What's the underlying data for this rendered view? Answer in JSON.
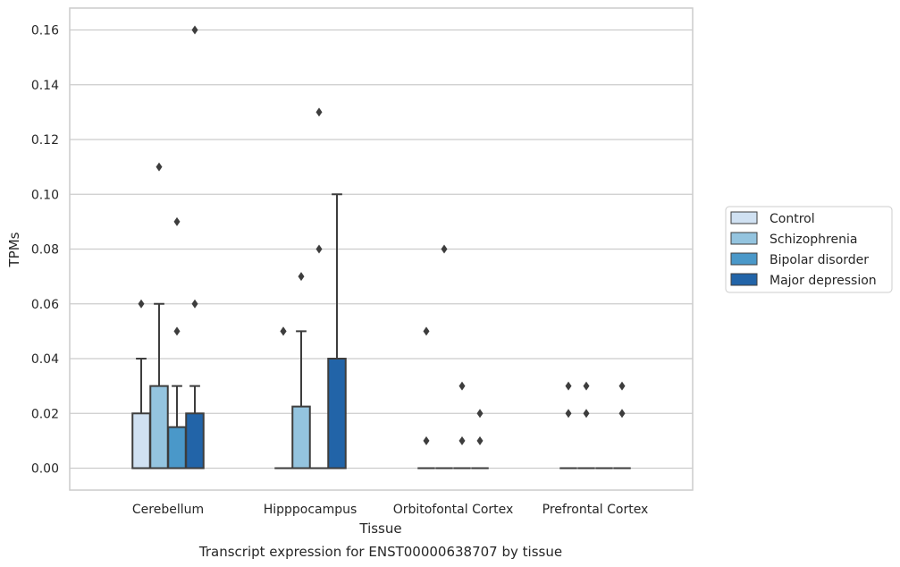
{
  "chart_data": {
    "type": "box",
    "title": "Transcript expression for ENST00000638707 by tissue",
    "xlabel": "Tissue",
    "ylabel": "TPMs",
    "ylim": [
      -0.008,
      0.168
    ],
    "yticks": [
      "0.00",
      "0.02",
      "0.04",
      "0.06",
      "0.08",
      "0.10",
      "0.12",
      "0.14",
      "0.16"
    ],
    "ytick_values": [
      0,
      0.02,
      0.04,
      0.06,
      0.08,
      0.1,
      0.12,
      0.14,
      0.16
    ],
    "grid": "horizontal",
    "legend_position": "right",
    "categories": [
      "Cerebellum",
      "Hipppocampus",
      "Orbitofontal Cortex",
      "Prefrontal Cortex"
    ],
    "series": [
      {
        "name": "Control",
        "color": "#d0e1f2",
        "boxes": [
          {
            "q1": 0,
            "median": 0,
            "q3": 0.02,
            "whisker_low": 0,
            "whisker_high": 0.04,
            "outliers": [
              0.06
            ]
          },
          {
            "q1": 0,
            "median": 0,
            "q3": 0,
            "whisker_low": 0,
            "whisker_high": 0,
            "outliers": [
              0.05,
              0.05
            ]
          },
          {
            "q1": 0,
            "median": 0,
            "q3": 0,
            "whisker_low": 0,
            "whisker_high": 0,
            "outliers": [
              0.01,
              0.05
            ]
          },
          {
            "q1": 0,
            "median": 0,
            "q3": 0,
            "whisker_low": 0,
            "whisker_high": 0,
            "outliers": [
              0.02,
              0.03
            ]
          }
        ]
      },
      {
        "name": "Schizophrenia",
        "color": "#94c4df",
        "boxes": [
          {
            "q1": 0,
            "median": 0,
            "q3": 0.03,
            "whisker_low": 0,
            "whisker_high": 0.06,
            "outliers": [
              0.11
            ]
          },
          {
            "q1": 0,
            "median": 0,
            "q3": 0.0225,
            "whisker_low": 0,
            "whisker_high": 0.05,
            "outliers": [
              0.07
            ]
          },
          {
            "q1": 0,
            "median": 0,
            "q3": 0,
            "whisker_low": 0,
            "whisker_high": 0,
            "outliers": [
              0.08
            ]
          },
          {
            "q1": 0,
            "median": 0,
            "q3": 0,
            "whisker_low": 0,
            "whisker_high": 0,
            "outliers": [
              0.02,
              0.03
            ]
          }
        ]
      },
      {
        "name": "Bipolar disorder",
        "color": "#4a98c9",
        "boxes": [
          {
            "q1": 0,
            "median": 0,
            "q3": 0.015,
            "whisker_low": 0,
            "whisker_high": 0.03,
            "outliers": [
              0.05,
              0.09
            ]
          },
          {
            "q1": 0,
            "median": 0,
            "q3": 0,
            "whisker_low": 0,
            "whisker_high": 0,
            "outliers": [
              0.08,
              0.13
            ]
          },
          {
            "q1": 0,
            "median": 0,
            "q3": 0,
            "whisker_low": 0,
            "whisker_high": 0,
            "outliers": [
              0.01,
              0.03
            ]
          },
          {
            "q1": 0,
            "median": 0,
            "q3": 0,
            "whisker_low": 0,
            "whisker_high": 0,
            "outliers": []
          }
        ]
      },
      {
        "name": "Major depression",
        "color": "#2264a8",
        "boxes": [
          {
            "q1": 0,
            "median": 0,
            "q3": 0.02,
            "whisker_low": 0,
            "whisker_high": 0.03,
            "outliers": [
              0.06,
              0.16
            ]
          },
          {
            "q1": 0,
            "median": 0,
            "q3": 0.04,
            "whisker_low": 0,
            "whisker_high": 0.1,
            "outliers": []
          },
          {
            "q1": 0,
            "median": 0,
            "q3": 0,
            "whisker_low": 0,
            "whisker_high": 0,
            "outliers": [
              0.01,
              0.02
            ]
          },
          {
            "q1": 0,
            "median": 0,
            "q3": 0,
            "whisker_low": 0,
            "whisker_high": 0,
            "outliers": [
              0.02,
              0.03
            ]
          }
        ]
      }
    ],
    "colors": {
      "box_edge": "#3d3d3d",
      "grid": "#cccccc",
      "frame": "#cccccc",
      "text": "#262626"
    }
  }
}
